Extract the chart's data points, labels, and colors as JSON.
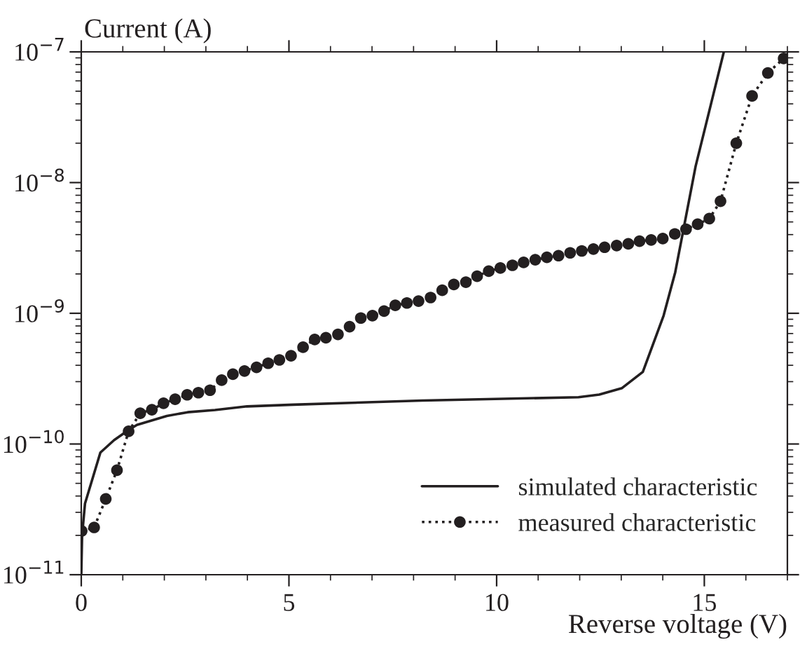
{
  "chart_data": {
    "type": "line",
    "xlabel": "Reverse voltage (V)",
    "ylabel": "Current (A)",
    "log": "y",
    "grid": false,
    "legend": "bottom right",
    "xlim": [
      0,
      17
    ],
    "xticks": [
      0,
      5,
      10,
      15
    ],
    "ylim": [
      1e-11,
      1e-07
    ],
    "yticks": [
      {
        "value": 1e-11,
        "label": "10$^{−11}$"
      },
      {
        "value": 1e-10,
        "label": "10$^{−10}$"
      },
      {
        "value": 1e-09,
        "label": "10$^{−9}$"
      },
      {
        "value": 1e-08,
        "label": "10$^{−8}$"
      },
      {
        "value": 1e-07,
        "label": "10$^{−7}$"
      }
    ],
    "series": [
      {
        "name": "simulated characteristic",
        "color": "#231f20",
        "line_style": "solid",
        "marker": "none",
        "x": [
          0,
          0.02,
          0.09,
          0.46,
          0.79,
          1.14,
          1.34,
          2.06,
          2.56,
          3.22,
          3.99,
          5.11,
          8.21,
          11.97,
          12.47,
          13.02,
          13.52,
          14.02,
          14.3,
          14.79,
          15.47
        ],
        "values": [
          1e-11,
          2e-11,
          3.5e-11,
          8.6e-11,
          1.07e-10,
          1.28e-10,
          1.4e-10,
          1.64e-10,
          1.75e-10,
          1.82e-10,
          1.94e-10,
          2e-10,
          2.15e-10,
          2.28e-10,
          2.39e-10,
          2.68e-10,
          3.56e-10,
          9.6e-10,
          2.06e-09,
          1.33e-08,
          1e-07
        ]
      },
      {
        "name": "measured characteristic",
        "color": "#231f20",
        "line_style": "dotted",
        "marker": "circle",
        "x": [
          0.01,
          0.31,
          0.59,
          0.86,
          1.14,
          1.42,
          1.7,
          1.98,
          2.26,
          2.55,
          2.82,
          3.1,
          3.38,
          3.65,
          3.93,
          4.22,
          4.5,
          4.77,
          5.05,
          5.34,
          5.62,
          5.89,
          6.18,
          6.46,
          6.73,
          7.01,
          7.29,
          7.56,
          7.84,
          8.12,
          8.41,
          8.69,
          8.97,
          9.26,
          9.53,
          9.81,
          10.09,
          10.38,
          10.65,
          10.93,
          11.21,
          11.49,
          11.77,
          12.05,
          12.33,
          12.6,
          12.89,
          13.17,
          13.44,
          13.72,
          14.0,
          14.29,
          14.56,
          14.84,
          15.12,
          15.39,
          15.77,
          16.15,
          16.53,
          16.91
        ],
        "values": [
          2.16e-11,
          2.3e-11,
          3.8e-11,
          6.3e-11,
          1.25e-10,
          1.72e-10,
          1.83e-10,
          2.05e-10,
          2.2e-10,
          2.38e-10,
          2.47e-10,
          2.58e-10,
          3.08e-10,
          3.42e-10,
          3.62e-10,
          3.86e-10,
          4.15e-10,
          4.4e-10,
          4.73e-10,
          5.5e-10,
          6.3e-10,
          6.5e-10,
          6.9e-10,
          7.9e-10,
          9.2e-10,
          9.6e-10,
          1.04e-09,
          1.15e-09,
          1.2e-09,
          1.24e-09,
          1.32e-09,
          1.5e-09,
          1.66e-09,
          1.73e-09,
          1.92e-09,
          2.1e-09,
          2.22e-09,
          2.33e-09,
          2.45e-09,
          2.57e-09,
          2.68e-09,
          2.76e-09,
          2.9e-09,
          3e-09,
          3.1e-09,
          3.2e-09,
          3.3e-09,
          3.4e-09,
          3.56e-09,
          3.64e-09,
          3.73e-09,
          4.05e-09,
          4.4e-09,
          4.8e-09,
          5.3e-09,
          7.2e-09,
          2e-08,
          4.6e-08,
          6.9e-08,
          8.9e-08
        ]
      }
    ]
  }
}
